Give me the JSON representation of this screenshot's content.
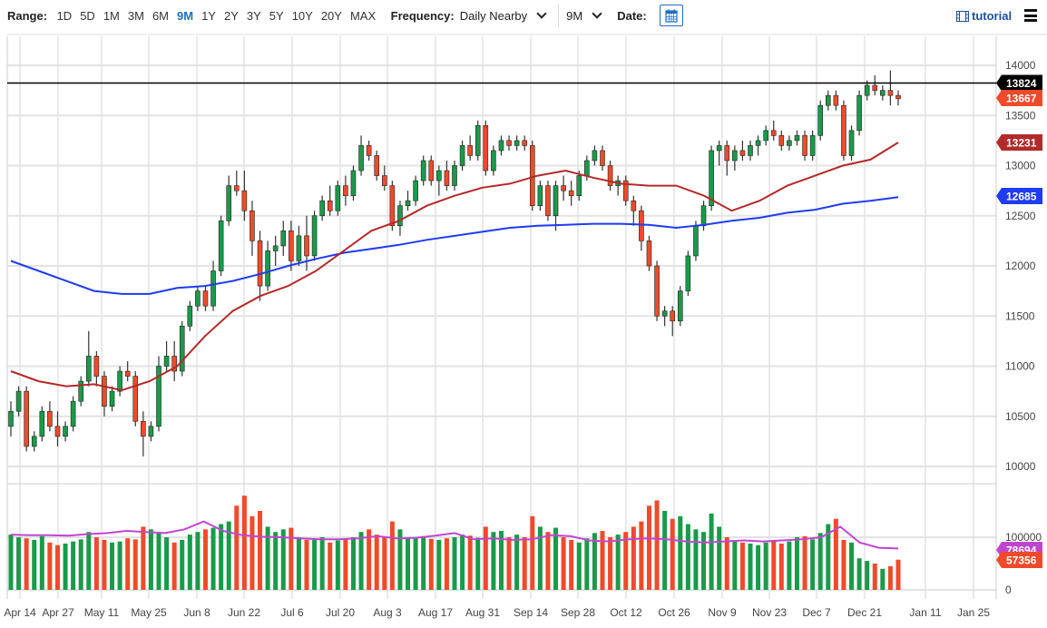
{
  "toolbar": {
    "range_label": "Range:",
    "ranges": [
      "1D",
      "5D",
      "1M",
      "3M",
      "6M",
      "9M",
      "1Y",
      "2Y",
      "3Y",
      "5Y",
      "10Y",
      "20Y",
      "MAX"
    ],
    "selected_range": "9M",
    "frequency_label": "Frequency:",
    "frequency_value": "Daily Nearby",
    "period_value": "9M",
    "date_label": "Date:",
    "calendar_icon": "calendar-icon",
    "tutorial_label": "tutorial",
    "tutorial_icon": "film-icon",
    "menu_icon": "hamburger-menu-icon"
  },
  "colors": {
    "up": "#1a9a4a",
    "down": "#f04a2a",
    "ma50": "#b22a2a",
    "ma200": "#1f3cf0",
    "volume_avg": "#c046d0",
    "last_price": "#000000",
    "accent": "#1a6fc4"
  },
  "chart_data": {
    "type": "candlestick",
    "x_tick_labels": [
      "Apr 14",
      "Apr 27",
      "May 11",
      "May 25",
      "Jun 8",
      "Jun 22",
      "Jul 6",
      "Jul 20",
      "Aug 3",
      "Aug 17",
      "Aug 31",
      "Sep 14",
      "Sep 28",
      "Oct 12",
      "Oct 26",
      "Nov 9",
      "Nov 23",
      "Dec 7",
      "Dec 21",
      "Jan 11",
      "Jan 25"
    ],
    "price_ticks": [
      10000,
      10500,
      11000,
      11500,
      12000,
      12500,
      13000,
      13500,
      14000
    ],
    "price_ylim": [
      9950,
      14050
    ],
    "volume_ticks": [
      0,
      100000
    ],
    "grid": true,
    "price_tags": {
      "high_line": "13824",
      "last": "13667",
      "ma50": "13231",
      "ma200": "12685"
    },
    "volume_tags": {
      "avg": "78694",
      "last": "57356"
    },
    "high_line_value": 13824,
    "ohlc": [
      [
        10400,
        10650,
        10300,
        10550
      ],
      [
        10550,
        10800,
        10500,
        10750
      ],
      [
        10750,
        10800,
        10150,
        10200
      ],
      [
        10200,
        10350,
        10150,
        10300
      ],
      [
        10300,
        10600,
        10250,
        10550
      ],
      [
        10550,
        10650,
        10350,
        10400
      ],
      [
        10400,
        10550,
        10200,
        10300
      ],
      [
        10300,
        10450,
        10250,
        10400
      ],
      [
        10400,
        10700,
        10350,
        10650
      ],
      [
        10650,
        10900,
        10600,
        10850
      ],
      [
        10850,
        11350,
        10800,
        11100
      ],
      [
        11100,
        11150,
        10800,
        10900
      ],
      [
        10900,
        10950,
        10500,
        10600
      ],
      [
        10600,
        10800,
        10550,
        10750
      ],
      [
        10750,
        11000,
        10700,
        10950
      ],
      [
        10950,
        11050,
        10850,
        10900
      ],
      [
        10900,
        10950,
        10400,
        10450
      ],
      [
        10450,
        10550,
        10100,
        10300
      ],
      [
        10300,
        10450,
        10250,
        10400
      ],
      [
        10400,
        11100,
        10350,
        11000
      ],
      [
        11000,
        11250,
        10950,
        11100
      ],
      [
        11100,
        11250,
        10850,
        10950
      ],
      [
        10950,
        11450,
        10900,
        11400
      ],
      [
        11400,
        11650,
        11350,
        11600
      ],
      [
        11600,
        11800,
        11550,
        11750
      ],
      [
        11750,
        11800,
        11550,
        11600
      ],
      [
        11600,
        12050,
        11550,
        11950
      ],
      [
        11950,
        12500,
        11900,
        12450
      ],
      [
        12450,
        12900,
        12400,
        12800
      ],
      [
        12800,
        12950,
        12700,
        12750
      ],
      [
        12750,
        12950,
        12450,
        12550
      ],
      [
        12550,
        12650,
        12100,
        12250
      ],
      [
        12250,
        12350,
        11650,
        11800
      ],
      [
        11800,
        12250,
        11750,
        12150
      ],
      [
        12150,
        12300,
        12000,
        12200
      ],
      [
        12200,
        12450,
        12100,
        12350
      ],
      [
        12350,
        12450,
        11950,
        12050
      ],
      [
        12050,
        12400,
        12000,
        12300
      ],
      [
        12300,
        12500,
        11950,
        12100
      ],
      [
        12100,
        12550,
        12050,
        12500
      ],
      [
        12500,
        12700,
        12450,
        12650
      ],
      [
        12650,
        12800,
        12500,
        12550
      ],
      [
        12550,
        12850,
        12500,
        12800
      ],
      [
        12800,
        12900,
        12600,
        12700
      ],
      [
        12700,
        13000,
        12650,
        12950
      ],
      [
        12950,
        13300,
        12900,
        13200
      ],
      [
        13200,
        13250,
        13050,
        13100
      ],
      [
        13100,
        13150,
        12850,
        12900
      ],
      [
        12900,
        13000,
        12750,
        12800
      ],
      [
        12800,
        12850,
        12350,
        12400
      ],
      [
        12400,
        12650,
        12300,
        12600
      ],
      [
        12600,
        12750,
        12550,
        12650
      ],
      [
        12650,
        12900,
        12600,
        12850
      ],
      [
        12850,
        13100,
        12800,
        13050
      ],
      [
        13050,
        13100,
        12800,
        12850
      ],
      [
        12850,
        13000,
        12700,
        12950
      ],
      [
        12950,
        13050,
        12750,
        12800
      ],
      [
        12800,
        13050,
        12750,
        13000
      ],
      [
        13000,
        13250,
        12950,
        13200
      ],
      [
        13200,
        13300,
        13050,
        13100
      ],
      [
        13100,
        13450,
        13050,
        13400
      ],
      [
        13400,
        13450,
        12900,
        12950
      ],
      [
        12950,
        13200,
        12900,
        13150
      ],
      [
        13150,
        13300,
        13100,
        13250
      ],
      [
        13250,
        13300,
        13150,
        13200
      ],
      [
        13200,
        13300,
        13150,
        13250
      ],
      [
        13250,
        13300,
        13150,
        13200
      ],
      [
        13200,
        13250,
        12550,
        12600
      ],
      [
        12600,
        12850,
        12550,
        12800
      ],
      [
        12800,
        12850,
        12450,
        12500
      ],
      [
        12500,
        12850,
        12350,
        12800
      ],
      [
        12800,
        12900,
        12650,
        12750
      ],
      [
        12750,
        12850,
        12600,
        12700
      ],
      [
        12700,
        12950,
        12650,
        12900
      ],
      [
        12900,
        13100,
        12850,
        13050
      ],
      [
        13050,
        13200,
        13000,
        13150
      ],
      [
        13150,
        13200,
        12950,
        13000
      ],
      [
        13000,
        13050,
        12750,
        12800
      ],
      [
        12800,
        12900,
        12700,
        12850
      ],
      [
        12850,
        12900,
        12600,
        12650
      ],
      [
        12650,
        12700,
        12400,
        12550
      ],
      [
        12550,
        12600,
        12150,
        12250
      ],
      [
        12250,
        12300,
        11950,
        12000
      ],
      [
        12000,
        12050,
        11450,
        11500
      ],
      [
        11500,
        11600,
        11400,
        11550
      ],
      [
        11550,
        11600,
        11300,
        11450
      ],
      [
        11450,
        11800,
        11400,
        11750
      ],
      [
        11750,
        12150,
        11700,
        12100
      ],
      [
        12100,
        12450,
        12050,
        12400
      ],
      [
        12400,
        12650,
        12350,
        12600
      ],
      [
        12600,
        13200,
        12550,
        13150
      ],
      [
        13150,
        13250,
        13000,
        13200
      ],
      [
        13200,
        13250,
        12900,
        13050
      ],
      [
        13050,
        13200,
        12950,
        13150
      ],
      [
        13150,
        13250,
        13050,
        13100
      ],
      [
        13100,
        13250,
        13050,
        13200
      ],
      [
        13200,
        13300,
        13100,
        13250
      ],
      [
        13250,
        13400,
        13200,
        13350
      ],
      [
        13350,
        13450,
        13250,
        13300
      ],
      [
        13300,
        13350,
        13150,
        13200
      ],
      [
        13200,
        13300,
        13150,
        13250
      ],
      [
        13250,
        13350,
        13200,
        13300
      ],
      [
        13300,
        13350,
        13050,
        13100
      ],
      [
        13100,
        13350,
        13050,
        13300
      ],
      [
        13300,
        13650,
        13250,
        13600
      ],
      [
        13600,
        13750,
        13550,
        13700
      ],
      [
        13700,
        13750,
        13550,
        13600
      ],
      [
        13600,
        13650,
        13050,
        13100
      ],
      [
        13100,
        13400,
        13050,
        13350
      ],
      [
        13350,
        13750,
        13300,
        13700
      ],
      [
        13700,
        13850,
        13650,
        13800
      ],
      [
        13800,
        13900,
        13700,
        13750
      ],
      [
        13700,
        13800,
        13650,
        13750
      ],
      [
        13750,
        13950,
        13600,
        13700
      ],
      [
        13700,
        13750,
        13600,
        13667
      ]
    ],
    "volume": [
      105000,
      100000,
      98000,
      95000,
      102000,
      90000,
      85000,
      88000,
      92000,
      96000,
      110000,
      100000,
      95000,
      90000,
      92000,
      98000,
      96000,
      120000,
      115000,
      108000,
      100000,
      90000,
      95000,
      105000,
      110000,
      115000,
      118000,
      125000,
      130000,
      160000,
      179000,
      140000,
      150000,
      120000,
      110000,
      115000,
      118000,
      100000,
      95000,
      96000,
      100000,
      90000,
      94000,
      96000,
      100000,
      110000,
      115000,
      105000,
      100000,
      130000,
      115000,
      98000,
      100000,
      102000,
      97000,
      95000,
      98000,
      100000,
      105000,
      103000,
      99000,
      120000,
      110000,
      112000,
      100000,
      105000,
      100000,
      140000,
      120000,
      110000,
      118000,
      100000,
      95000,
      90000,
      98000,
      108000,
      112000,
      100000,
      105000,
      110000,
      120000,
      130000,
      160000,
      170000,
      150000,
      135000,
      140000,
      125000,
      115000,
      110000,
      145000,
      120000,
      100000,
      92000,
      90000,
      88000,
      85000,
      90000,
      95000,
      88000,
      92000,
      100000,
      102000,
      96000,
      108000,
      125000,
      135000,
      95000,
      90000,
      60000,
      55000,
      50000,
      40000,
      45000,
      57356
    ],
    "volume_avg": [
      105000,
      104000,
      104000,
      103000,
      106000,
      108000,
      112000,
      110000,
      108000,
      115000,
      130000,
      112000,
      104000,
      101000,
      100000,
      98000,
      96000,
      96000,
      98000,
      102000,
      98000,
      99000,
      103000,
      108000,
      96000,
      98000,
      95000,
      96000,
      104000,
      102000,
      94000,
      92000,
      96000,
      98000,
      96000,
      92000,
      90000,
      92000,
      94000,
      92000,
      94000,
      96000,
      100000,
      120000,
      90000,
      80000,
      78694
    ],
    "ma50": [
      10950,
      10850,
      10800,
      10820,
      10760,
      10850,
      11000,
      11300,
      11550,
      11700,
      11800,
      11950,
      12150,
      12350,
      12450,
      12600,
      12700,
      12780,
      12820,
      12900,
      12950,
      12880,
      12820,
      12800,
      12800,
      12700,
      12550,
      12650,
      12800,
      12900,
      13000,
      13060,
      13231
    ],
    "ma200": [
      12050,
      11950,
      11850,
      11750,
      11720,
      11720,
      11780,
      11800,
      11850,
      11920,
      12000,
      12070,
      12130,
      12170,
      12210,
      12260,
      12300,
      12340,
      12380,
      12400,
      12410,
      12420,
      12420,
      12410,
      12380,
      12410,
      12450,
      12480,
      12530,
      12560,
      12620,
      12650,
      12685
    ]
  }
}
